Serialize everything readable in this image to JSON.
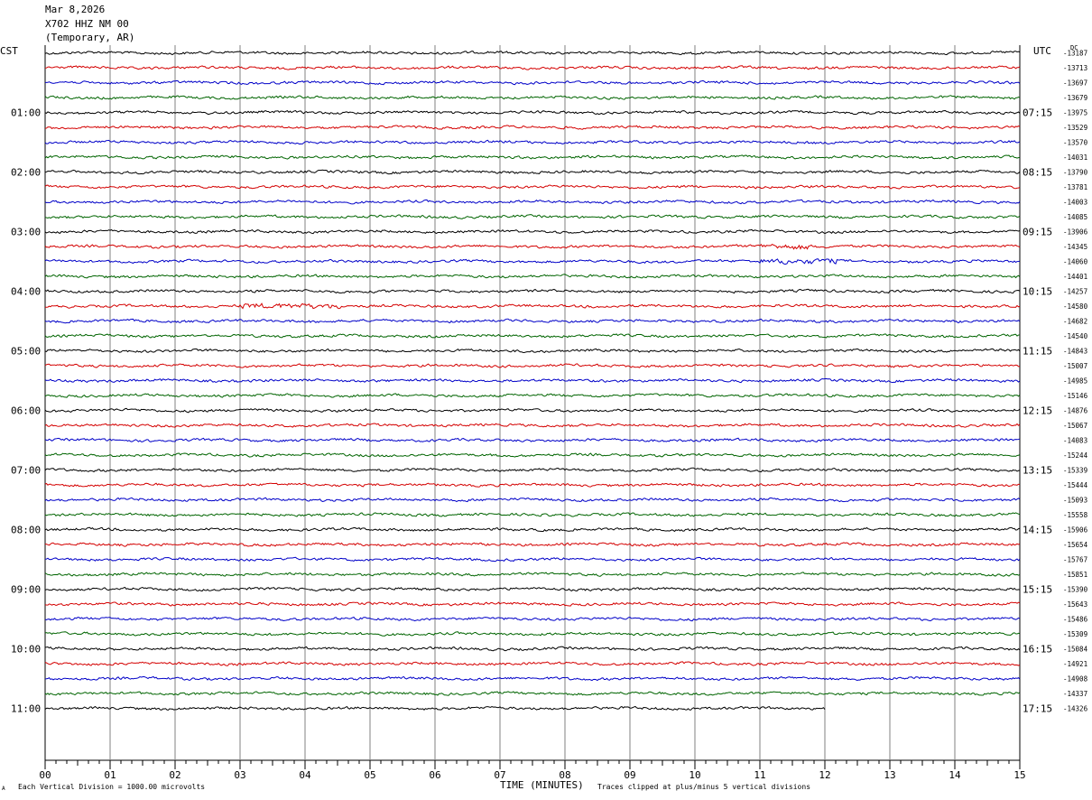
{
  "header": {
    "date": "Mar 8,2026",
    "station": "X702 HHZ NM 00",
    "network": "(Temporary, AR)"
  },
  "axes": {
    "left_zone": "CST",
    "right_zone": "UTC",
    "dc_label": "DC",
    "xlabel": "TIME (MINUTES)",
    "x_ticks": [
      "00",
      "01",
      "02",
      "03",
      "04",
      "05",
      "06",
      "07",
      "08",
      "09",
      "10",
      "11",
      "12",
      "13",
      "14",
      "15"
    ]
  },
  "footer": {
    "corner_mark": "A",
    "scale_note": "Each Vertical Division = 1000.00 microvolts",
    "clip_note": "Traces clipped at plus/minus 5 vertical divisions"
  },
  "colors": {
    "trace_cycle": [
      "#000000",
      "#d40000",
      "#0000c8",
      "#006400"
    ],
    "grid": "#808080"
  },
  "chart_data": {
    "type": "line",
    "title": "",
    "x_range_minutes": [
      0,
      15
    ],
    "rows_per_hour": 4,
    "row_interval_minutes": 15,
    "last_row_end_minute": 12.0,
    "cst_hour_labels": [
      "01:00",
      "02:00",
      "03:00",
      "04:00",
      "05:00",
      "06:00",
      "07:00",
      "08:00",
      "09:00",
      "10:00",
      "11:00"
    ],
    "utc_hour_labels": [
      "07:15",
      "08:15",
      "09:15",
      "10:15",
      "11:15",
      "12:15",
      "13:15",
      "14:15",
      "15:15",
      "16:15",
      "17:15"
    ],
    "dc_offsets": [
      "-13187",
      "-13713",
      "-13697",
      "-13679",
      "-13975",
      "-13529",
      "-13570",
      "-14031",
      "-13790",
      "-13781",
      "-14003",
      "-14085",
      "-13906",
      "-14345",
      "-14060",
      "-14401",
      "-14257",
      "-14580",
      "-14682",
      "-14540",
      "-14843",
      "-15007",
      "-14985",
      "-15146",
      "-14876",
      "-15067",
      "-14083",
      "-15244",
      "-15339",
      "-15444",
      "-15093",
      "-15558",
      "-15906",
      "-15654",
      "-15767",
      "-15851",
      "-15390",
      "-15643",
      "-15486",
      "-15309",
      "-15084",
      "-14921",
      "-14908",
      "-14337",
      "-14326"
    ],
    "events": [
      {
        "row": 17,
        "start_minute": 3.0,
        "end_minute": 4.6,
        "note": "wavy disturbance"
      },
      {
        "row": 14,
        "start_minute": 11.0,
        "end_minute": 12.2,
        "note": "small spikes"
      },
      {
        "row": 13,
        "start_minute": 11.0,
        "end_minute": 11.8,
        "note": "small step"
      }
    ]
  }
}
